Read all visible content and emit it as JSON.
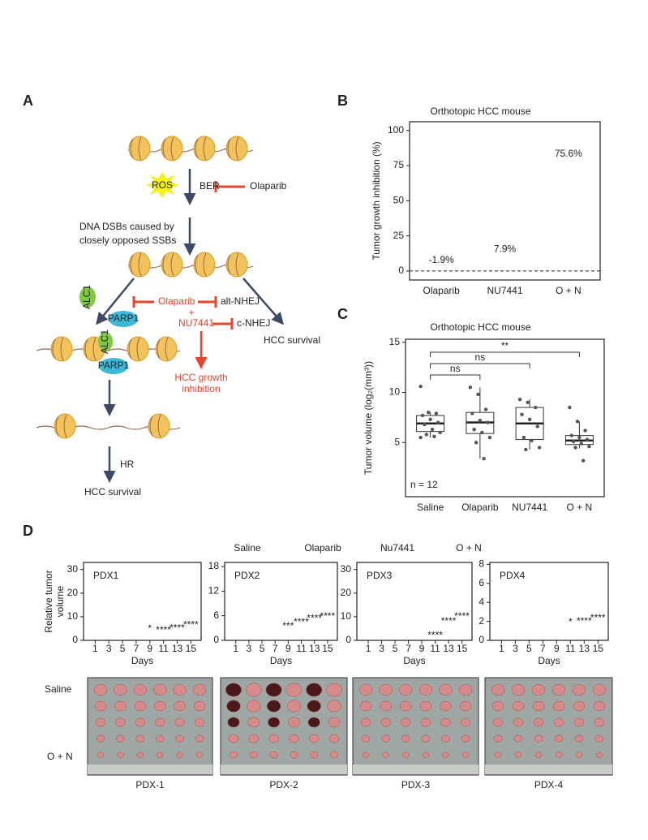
{
  "panel_labels": [
    "A",
    "B",
    "C",
    "D"
  ],
  "diagram": {
    "labels": [
      "ROS",
      "BER",
      "Olaparib",
      "DNA DSBs caused by",
      "closely opposed SSBs",
      "ALC1",
      "PARP1",
      "Olaparib",
      "alt-NHEJ",
      "+",
      "NU7441",
      "c-NHEJ",
      "HCC survival",
      "HCC growth",
      "inhibition",
      "ALC1",
      "PARP1",
      "HR",
      "HCC survival"
    ]
  },
  "chart_data": [
    {
      "type": "bar",
      "title": "Orthotopic HCC mouse",
      "ylabel": "Tumor growth inhibition (%)",
      "categories": [
        "Olaparib",
        "NU7441",
        "O + N"
      ],
      "values": [
        -1.9,
        7.9,
        75.6
      ],
      "value_labels": [
        "-1.9%",
        "7.9%",
        "75.6%"
      ],
      "ylim": [
        -6.4,
        106.2
      ],
      "yticks": [
        0,
        25,
        50,
        75,
        100
      ]
    },
    {
      "type": "box",
      "title": "Orthotopic HCC mouse",
      "ylabel": "Tumor volume (log₂(mm³))",
      "categories": [
        "Saline",
        "Olaparib",
        "NU7441",
        "O + N"
      ],
      "boxes": [
        {
          "low": 5.5,
          "q1": 6.1,
          "median": 6.9,
          "q3": 7.7,
          "high": 8.0,
          "points": [
            10.6,
            8.0,
            7.9,
            7.7,
            7.3,
            7.0,
            6.8,
            6.3,
            6.0,
            5.8,
            5.6,
            5.5
          ]
        },
        {
          "low": 3.4,
          "q1": 5.9,
          "median": 7.0,
          "q3": 8.0,
          "high": 10.5,
          "points": [
            10.5,
            9.8,
            8.3,
            7.9,
            7.2,
            7.0,
            6.3,
            6.0,
            5.5,
            5.0,
            3.4
          ]
        },
        {
          "low": 4.3,
          "q1": 5.3,
          "median": 6.9,
          "q3": 8.5,
          "high": 9.3,
          "points": [
            9.3,
            9.0,
            8.5,
            7.8,
            7.3,
            6.6,
            5.5,
            5.2,
            4.5,
            4.3
          ]
        },
        {
          "low": 4.4,
          "q1": 4.8,
          "median": 5.2,
          "q3": 5.7,
          "high": 7.1,
          "points": [
            8.5,
            7.1,
            6.2,
            5.7,
            5.5,
            5.3,
            5.1,
            4.9,
            4.6,
            4.5,
            3.2
          ]
        }
      ],
      "brackets": [
        "ns",
        "ns",
        "**"
      ],
      "annotation": "n = 12",
      "ylim": [
        -0.4,
        15.3
      ],
      "yticks": [
        5,
        10,
        15
      ]
    },
    {
      "type": "line",
      "title": "PDX1",
      "ylabel": [
        "Relative tumor",
        "volume"
      ],
      "xlabel": "Days",
      "xlim": [
        -0.7,
        16.5
      ],
      "xticks": [
        1,
        3,
        5,
        7,
        9,
        11,
        13,
        15
      ],
      "ylim": [
        0,
        33
      ],
      "yticks": [
        0,
        10,
        20,
        30
      ],
      "annotations": [
        {
          "text": "*",
          "x": 9,
          "y": 4.8
        },
        {
          "text": "****",
          "x": 11,
          "y": 4.2
        },
        {
          "text": "****",
          "x": 13,
          "y": 5
        },
        {
          "text": "****",
          "x": 15,
          "y": 6.5
        }
      ]
    },
    {
      "type": "line",
      "title": "PDX2",
      "xlabel": "Days",
      "xlim": [
        -0.7,
        16.5
      ],
      "xticks": [
        1,
        3,
        5,
        7,
        9,
        11,
        13,
        15
      ],
      "ylim": [
        0,
        19
      ],
      "yticks": [
        0,
        6,
        12,
        18
      ],
      "annotations": [
        {
          "text": "***",
          "x": 9,
          "y": 3.4
        },
        {
          "text": "****",
          "x": 11,
          "y": 4.4
        },
        {
          "text": "****",
          "x": 13,
          "y": 5.3
        },
        {
          "text": "****",
          "x": 15,
          "y": 5.8
        }
      ]
    },
    {
      "type": "line",
      "title": "PDX3",
      "xlabel": "Days",
      "xlim": [
        -0.7,
        16.5
      ],
      "xticks": [
        1,
        3,
        5,
        7,
        9,
        11,
        13,
        15
      ],
      "ylim": [
        0,
        33
      ],
      "yticks": [
        0,
        10,
        20,
        30
      ],
      "annotations": [
        {
          "text": "****",
          "x": 11,
          "y": 2
        },
        {
          "text": "****",
          "x": 13,
          "y": 8
        },
        {
          "text": "****",
          "x": 15,
          "y": 10
        }
      ]
    },
    {
      "type": "line",
      "title": "PDX4",
      "xlabel": "Days",
      "xlim": [
        -0.7,
        16.5
      ],
      "xticks": [
        1,
        3,
        5,
        7,
        9,
        11,
        13,
        15
      ],
      "ylim": [
        0,
        8.2
      ],
      "yticks": [
        0,
        2,
        4,
        6,
        8
      ],
      "annotations": [
        {
          "text": "*",
          "x": 11,
          "y": 1.9
        },
        {
          "text": "****",
          "x": 13,
          "y": 2
        },
        {
          "text": "****",
          "x": 15,
          "y": 2.3
        }
      ]
    }
  ],
  "panel_d_legend": [
    "Saline",
    "Olaparib",
    "Nu7441",
    "O + N"
  ],
  "photos": {
    "row_labels": [
      "Saline",
      "O + N"
    ],
    "captions": [
      "PDX-1",
      "PDX-2",
      "PDX-3",
      "PDX-4"
    ]
  }
}
